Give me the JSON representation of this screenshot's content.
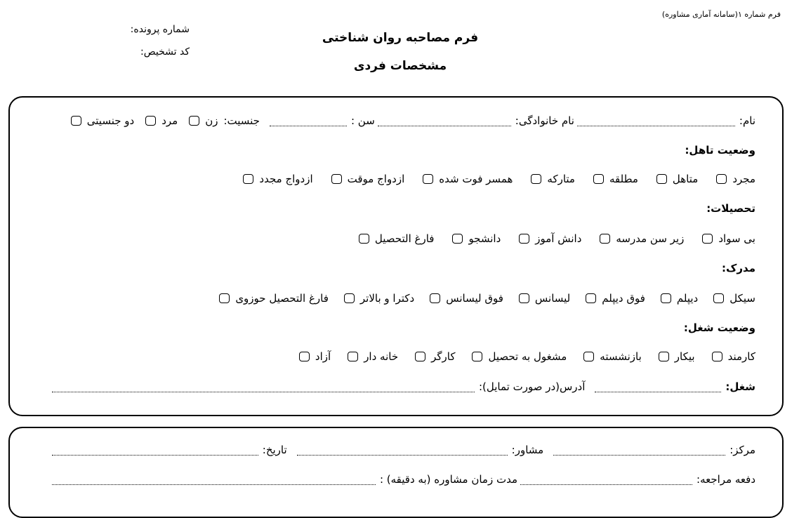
{
  "header": {
    "form_number": "فرم شماره ۱(سامانه آماری مشاوره)",
    "title": "فرم مصاحبه روان شناختی",
    "subtitle": "مشخصات فردی",
    "file_number_label": "شماره پرونده:",
    "diagnosis_code_label": "کد تشخیص:"
  },
  "personal": {
    "name_label": "نام:",
    "family_label": "نام خانوادگی:",
    "age_label": "سن :",
    "gender_label": "جنسیت:",
    "gender_options": [
      "زن",
      "مرد",
      "دو جنسیتی"
    ],
    "marital_label": "وضعیت تاهل:",
    "marital_options": [
      "مجرد",
      "متاهل",
      "مطلقه",
      "متارکه",
      "همسر فوت شده",
      "ازدواج موقت",
      "ازدواج مجدد"
    ],
    "education_label": "تحصیلات:",
    "education_options": [
      "بی سواد",
      "زیر سن مدرسه",
      "دانش آموز",
      "دانشجو",
      "فارغ التحصیل"
    ],
    "degree_label": "مدرک:",
    "degree_options": [
      "سیکل",
      "دیپلم",
      "فوق دیپلم",
      "لیسانس",
      "فوق لیسانس",
      "دکترا و بالاتر",
      "فارغ التحصیل حوزوی"
    ],
    "job_status_label": "وضعیت شغل:",
    "job_status_options": [
      "کارمند",
      "بیکار",
      "بازنشسته",
      "مشغول به تحصیل",
      "کارگر",
      "خانه دار",
      "آزاد"
    ],
    "job_label": "شغل:",
    "address_label": "آدرس(در صورت تمایل):"
  },
  "session": {
    "center_label": "مرکز:",
    "counselor_label": "مشاور:",
    "date_label": "تاریخ:",
    "visit_label": "دفعه مراجعه:",
    "duration_label": "مدت زمان مشاوره (به دقیقه) :"
  }
}
